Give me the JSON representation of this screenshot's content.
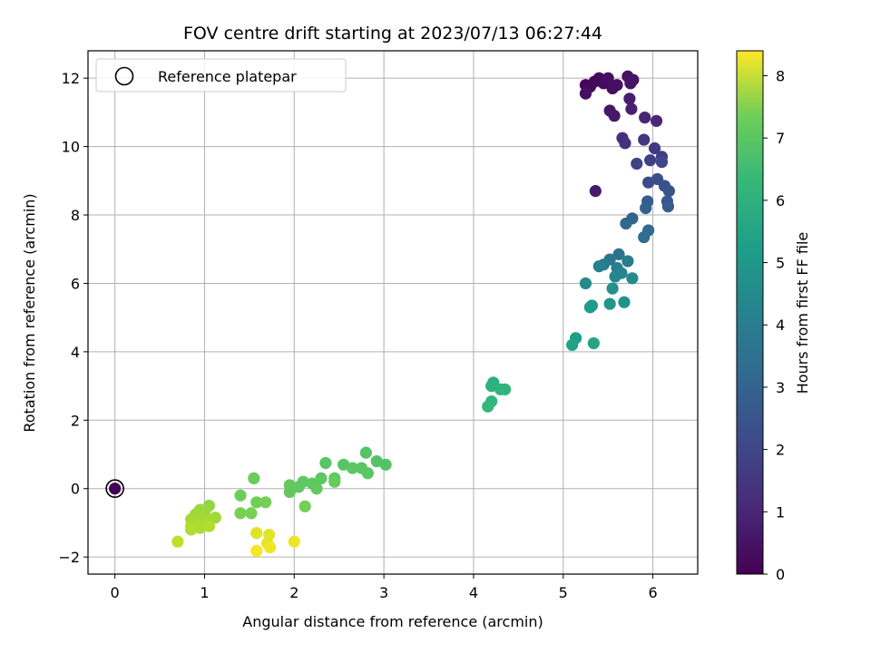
{
  "chart_data": {
    "type": "scatter",
    "title": "FOV centre drift starting at 2023/07/13 06:27:44",
    "xlabel": "Angular distance from reference (arcmin)",
    "ylabel": "Rotation from reference (arcmin)",
    "colorbar_label": "Hours from first FF file",
    "xlim": [
      -0.3,
      6.5
    ],
    "ylim": [
      -2.5,
      12.8
    ],
    "xticks": [
      0,
      1,
      2,
      3,
      4,
      5,
      6
    ],
    "yticks": [
      -2,
      0,
      2,
      4,
      6,
      8,
      10,
      12
    ],
    "colorbar_range": [
      0,
      8.4
    ],
    "colorbar_ticks": [
      0,
      1,
      2,
      3,
      4,
      5,
      6,
      7,
      8
    ],
    "colormap": "viridis",
    "grid": true,
    "legend": {
      "placement": "top-left",
      "entries": [
        "Reference platepar"
      ]
    },
    "reference_point": {
      "x": 0,
      "y": 0
    },
    "points": [
      {
        "x": 0,
        "y": 0,
        "h": 0
      },
      {
        "x": 5.25,
        "y": 11.8,
        "h": 0.1
      },
      {
        "x": 5.3,
        "y": 11.75,
        "h": 0.15
      },
      {
        "x": 5.35,
        "y": 11.9,
        "h": 0.2
      },
      {
        "x": 5.4,
        "y": 12.0,
        "h": 0.2
      },
      {
        "x": 5.45,
        "y": 11.85,
        "h": 0.25
      },
      {
        "x": 5.5,
        "y": 12.0,
        "h": 0.3
      },
      {
        "x": 5.55,
        "y": 11.7,
        "h": 0.3
      },
      {
        "x": 5.6,
        "y": 11.8,
        "h": 0.35
      },
      {
        "x": 5.25,
        "y": 11.55,
        "h": 0.35
      },
      {
        "x": 5.72,
        "y": 12.05,
        "h": 0.4
      },
      {
        "x": 5.78,
        "y": 11.95,
        "h": 0.45
      },
      {
        "x": 5.75,
        "y": 11.85,
        "h": 0.45
      },
      {
        "x": 5.52,
        "y": 11.05,
        "h": 0.5
      },
      {
        "x": 5.57,
        "y": 10.9,
        "h": 0.55
      },
      {
        "x": 5.36,
        "y": 8.7,
        "h": 0.6
      },
      {
        "x": 5.74,
        "y": 11.4,
        "h": 0.7
      },
      {
        "x": 5.76,
        "y": 11.1,
        "h": 0.75
      },
      {
        "x": 5.91,
        "y": 10.85,
        "h": 0.85
      },
      {
        "x": 6.04,
        "y": 10.75,
        "h": 0.95
      },
      {
        "x": 5.66,
        "y": 10.25,
        "h": 1.1
      },
      {
        "x": 5.69,
        "y": 10.1,
        "h": 1.2
      },
      {
        "x": 5.9,
        "y": 10.2,
        "h": 1.3
      },
      {
        "x": 6.02,
        "y": 9.95,
        "h": 1.4
      },
      {
        "x": 6.1,
        "y": 9.7,
        "h": 1.5
      },
      {
        "x": 5.97,
        "y": 9.6,
        "h": 1.6
      },
      {
        "x": 5.82,
        "y": 9.5,
        "h": 1.7
      },
      {
        "x": 6.1,
        "y": 9.55,
        "h": 1.8
      },
      {
        "x": 5.95,
        "y": 8.95,
        "h": 1.9
      },
      {
        "x": 6.05,
        "y": 9.05,
        "h": 2.0
      },
      {
        "x": 6.13,
        "y": 8.85,
        "h": 2.1
      },
      {
        "x": 6.18,
        "y": 8.7,
        "h": 2.2
      },
      {
        "x": 6.16,
        "y": 8.4,
        "h": 2.3
      },
      {
        "x": 6.17,
        "y": 8.25,
        "h": 2.4
      },
      {
        "x": 5.94,
        "y": 8.4,
        "h": 2.5
      },
      {
        "x": 5.92,
        "y": 8.2,
        "h": 2.6
      },
      {
        "x": 5.77,
        "y": 7.9,
        "h": 2.7
      },
      {
        "x": 5.7,
        "y": 7.75,
        "h": 2.8
      },
      {
        "x": 5.95,
        "y": 7.55,
        "h": 2.9
      },
      {
        "x": 5.9,
        "y": 7.35,
        "h": 3.0
      },
      {
        "x": 5.62,
        "y": 6.85,
        "h": 3.2
      },
      {
        "x": 5.52,
        "y": 6.7,
        "h": 3.3
      },
      {
        "x": 5.45,
        "y": 6.55,
        "h": 3.4
      },
      {
        "x": 5.72,
        "y": 6.65,
        "h": 3.5
      },
      {
        "x": 5.6,
        "y": 6.45,
        "h": 3.6
      },
      {
        "x": 5.4,
        "y": 6.5,
        "h": 3.7
      },
      {
        "x": 5.65,
        "y": 6.3,
        "h": 3.8
      },
      {
        "x": 5.58,
        "y": 6.2,
        "h": 3.9
      },
      {
        "x": 5.77,
        "y": 6.15,
        "h": 4.0
      },
      {
        "x": 5.25,
        "y": 6.0,
        "h": 4.1
      },
      {
        "x": 5.55,
        "y": 5.85,
        "h": 4.2
      },
      {
        "x": 5.68,
        "y": 5.45,
        "h": 4.3
      },
      {
        "x": 5.52,
        "y": 5.4,
        "h": 4.4
      },
      {
        "x": 5.32,
        "y": 5.35,
        "h": 4.5
      },
      {
        "x": 5.3,
        "y": 5.3,
        "h": 4.6
      },
      {
        "x": 5.14,
        "y": 4.4,
        "h": 4.7
      },
      {
        "x": 5.1,
        "y": 4.2,
        "h": 4.8
      },
      {
        "x": 5.34,
        "y": 4.25,
        "h": 4.9
      },
      {
        "x": 4.22,
        "y": 3.1,
        "h": 5.3
      },
      {
        "x": 4.2,
        "y": 3.0,
        "h": 5.35
      },
      {
        "x": 4.3,
        "y": 2.9,
        "h": 5.4
      },
      {
        "x": 4.35,
        "y": 2.9,
        "h": 5.45
      },
      {
        "x": 4.2,
        "y": 2.55,
        "h": 5.5
      },
      {
        "x": 4.16,
        "y": 2.4,
        "h": 5.55
      },
      {
        "x": 2.8,
        "y": 1.05,
        "h": 6.1
      },
      {
        "x": 2.92,
        "y": 0.8,
        "h": 6.1
      },
      {
        "x": 3.02,
        "y": 0.7,
        "h": 6.1
      },
      {
        "x": 2.55,
        "y": 0.7,
        "h": 6.15
      },
      {
        "x": 2.35,
        "y": 0.75,
        "h": 6.15
      },
      {
        "x": 2.65,
        "y": 0.6,
        "h": 6.2
      },
      {
        "x": 2.75,
        "y": 0.6,
        "h": 6.2
      },
      {
        "x": 2.82,
        "y": 0.45,
        "h": 6.2
      },
      {
        "x": 2.45,
        "y": 0.3,
        "h": 6.25
      },
      {
        "x": 2.3,
        "y": 0.3,
        "h": 6.25
      },
      {
        "x": 2.2,
        "y": 0.15,
        "h": 6.3
      },
      {
        "x": 2.1,
        "y": 0.2,
        "h": 6.3
      },
      {
        "x": 2.05,
        "y": 0.05,
        "h": 6.3
      },
      {
        "x": 1.95,
        "y": 0.1,
        "h": 6.35
      },
      {
        "x": 1.95,
        "y": -0.1,
        "h": 6.35
      },
      {
        "x": 2.25,
        "y": 0.0,
        "h": 6.35
      },
      {
        "x": 2.45,
        "y": 0.2,
        "h": 6.4
      },
      {
        "x": 1.55,
        "y": 0.3,
        "h": 6.45
      },
      {
        "x": 1.4,
        "y": -0.2,
        "h": 6.5
      },
      {
        "x": 1.58,
        "y": -0.4,
        "h": 6.55
      },
      {
        "x": 1.68,
        "y": -0.4,
        "h": 6.6
      },
      {
        "x": 2.12,
        "y": -0.52,
        "h": 6.6
      },
      {
        "x": 1.52,
        "y": -0.72,
        "h": 6.65
      },
      {
        "x": 1.4,
        "y": -0.72,
        "h": 6.65
      },
      {
        "x": 1.05,
        "y": -0.5,
        "h": 7.0
      },
      {
        "x": 0.95,
        "y": -0.62,
        "h": 7.1
      },
      {
        "x": 1.0,
        "y": -0.7,
        "h": 7.1
      },
      {
        "x": 0.9,
        "y": -0.75,
        "h": 7.15
      },
      {
        "x": 1.0,
        "y": -0.85,
        "h": 7.2
      },
      {
        "x": 1.12,
        "y": -0.85,
        "h": 7.2
      },
      {
        "x": 0.85,
        "y": -0.9,
        "h": 7.25
      },
      {
        "x": 0.9,
        "y": -1.0,
        "h": 7.3
      },
      {
        "x": 1.02,
        "y": -1.0,
        "h": 7.3
      },
      {
        "x": 0.85,
        "y": -1.1,
        "h": 7.35
      },
      {
        "x": 0.95,
        "y": -1.15,
        "h": 7.35
      },
      {
        "x": 1.05,
        "y": -1.1,
        "h": 7.4
      },
      {
        "x": 0.85,
        "y": -1.2,
        "h": 7.4
      },
      {
        "x": 0.7,
        "y": -1.55,
        "h": 7.6
      },
      {
        "x": 1.58,
        "y": -1.3,
        "h": 8.0
      },
      {
        "x": 1.72,
        "y": -1.35,
        "h": 8.05
      },
      {
        "x": 1.7,
        "y": -1.6,
        "h": 8.1
      },
      {
        "x": 2.0,
        "y": -1.55,
        "h": 8.2
      },
      {
        "x": 1.73,
        "y": -1.72,
        "h": 8.25
      },
      {
        "x": 1.58,
        "y": -1.82,
        "h": 8.3
      }
    ]
  }
}
